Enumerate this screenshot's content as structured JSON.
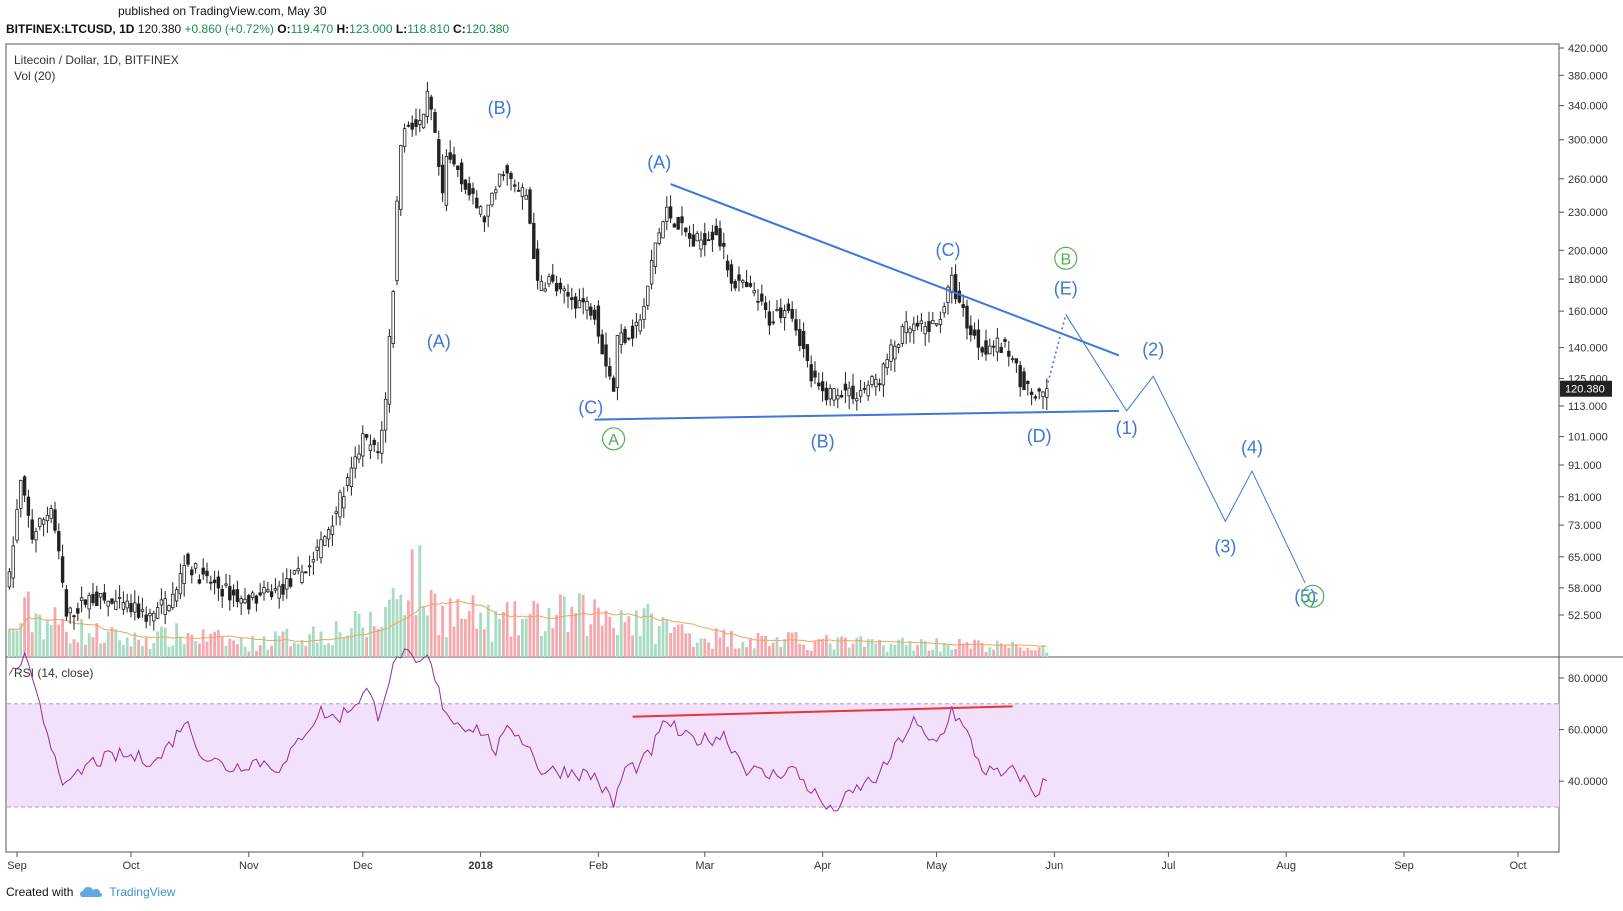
{
  "header": {
    "published": "published on TradingView.com, May 30",
    "symbol": "BITFINEX:LTCUSD, 1D",
    "price": "120.380",
    "change": "+0.860 (+0.72%)",
    "o_label": "O:",
    "o": "119.470",
    "h_label": "H:",
    "h": "123.000",
    "l_label": "L:",
    "l": "118.810",
    "c_label": "C:",
    "c": "120.380"
  },
  "footer": {
    "created_with": "Created with",
    "brand": "TradingView"
  },
  "chart_data": {
    "type": "candlestick",
    "title": "Litecoin / Dollar, 1D, BITFINEX",
    "volume_label": "Vol (20)",
    "rsi_label": "RSI (14, close)",
    "last_price_tag": "120.380",
    "price_axis": {
      "scale": "log",
      "ylim": [
        48,
        422
      ],
      "ticks": [
        "420.000",
        "380.000",
        "340.000",
        "300.000",
        "260.000",
        "230.000",
        "200.000",
        "180.000",
        "160.000",
        "140.000",
        "125.000",
        "113.000",
        "101.000",
        "91.000",
        "81.000",
        "73.000",
        "65.000",
        "58.000",
        "52.500"
      ]
    },
    "rsi_axis": {
      "ylim": [
        25,
        97
      ],
      "ticks": [
        "80.0000",
        "60.0000",
        "40.0000"
      ],
      "band": [
        30,
        70
      ]
    },
    "time_axis": {
      "labels": [
        "Sep",
        "Oct",
        "Nov",
        "Dec",
        "2018",
        "Feb",
        "Mar",
        "Apr",
        "May",
        "Jun",
        "Jul",
        "Aug",
        "Sep",
        "Oct"
      ],
      "dates": [
        "2017-09-01",
        "2017-10-01",
        "2017-11-01",
        "2017-12-01",
        "2018-01-01",
        "2018-02-01",
        "2018-03-01",
        "2018-04-01",
        "2018-05-01",
        "2018-06-01",
        "2018-07-01",
        "2018-08-01",
        "2018-09-01",
        "2018-10-01"
      ]
    },
    "price_anchors": [
      [
        "2017-08-30",
        60
      ],
      [
        "2017-09-02",
        85
      ],
      [
        "2017-09-05",
        70
      ],
      [
        "2017-09-10",
        78
      ],
      [
        "2017-09-14",
        52
      ],
      [
        "2017-09-20",
        56
      ],
      [
        "2017-09-30",
        54
      ],
      [
        "2017-10-06",
        52
      ],
      [
        "2017-10-13",
        57
      ],
      [
        "2017-10-15",
        64
      ],
      [
        "2017-10-20",
        60
      ],
      [
        "2017-10-31",
        55
      ],
      [
        "2017-11-10",
        58
      ],
      [
        "2017-11-17",
        63
      ],
      [
        "2017-11-21",
        70
      ],
      [
        "2017-11-25",
        80
      ],
      [
        "2017-11-28",
        88
      ],
      [
        "2017-12-01",
        100
      ],
      [
        "2017-12-05",
        95
      ],
      [
        "2017-12-07",
        115
      ],
      [
        "2017-12-09",
        175
      ],
      [
        "2017-12-11",
        300
      ],
      [
        "2017-12-13",
        320
      ],
      [
        "2017-12-15",
        315
      ],
      [
        "2017-12-17",
        320
      ],
      [
        "2017-12-18",
        350
      ],
      [
        "2017-12-19",
        330
      ],
      [
        "2017-12-22",
        240
      ],
      [
        "2017-12-23",
        280
      ],
      [
        "2017-12-26",
        270
      ],
      [
        "2017-12-29",
        245
      ],
      [
        "2018-01-02",
        225
      ],
      [
        "2018-01-04",
        240
      ],
      [
        "2018-01-07",
        270
      ],
      [
        "2018-01-10",
        250
      ],
      [
        "2018-01-13",
        245
      ],
      [
        "2018-01-16",
        175
      ],
      [
        "2018-01-19",
        180
      ],
      [
        "2018-01-22",
        170
      ],
      [
        "2018-01-28",
        165
      ],
      [
        "2018-01-31",
        160
      ],
      [
        "2018-02-02",
        140
      ],
      [
        "2018-02-05",
        120
      ],
      [
        "2018-02-06",
        145
      ],
      [
        "2018-02-10",
        148
      ],
      [
        "2018-02-13",
        160
      ],
      [
        "2018-02-16",
        205
      ],
      [
        "2018-02-19",
        230
      ],
      [
        "2018-02-22",
        220
      ],
      [
        "2018-02-26",
        205
      ],
      [
        "2018-03-01",
        210
      ],
      [
        "2018-03-04",
        215
      ],
      [
        "2018-03-08",
        180
      ],
      [
        "2018-03-14",
        170
      ],
      [
        "2018-03-18",
        155
      ],
      [
        "2018-03-23",
        165
      ],
      [
        "2018-03-26",
        145
      ],
      [
        "2018-03-29",
        125
      ],
      [
        "2018-04-01",
        118
      ],
      [
        "2018-04-06",
        120
      ],
      [
        "2018-04-10",
        118
      ],
      [
        "2018-04-13",
        122
      ],
      [
        "2018-04-16",
        125
      ],
      [
        "2018-04-19",
        138
      ],
      [
        "2018-04-23",
        150
      ],
      [
        "2018-04-27",
        150
      ],
      [
        "2018-05-01",
        152
      ],
      [
        "2018-05-05",
        178
      ],
      [
        "2018-05-07",
        165
      ],
      [
        "2018-05-10",
        148
      ],
      [
        "2018-05-13",
        140
      ],
      [
        "2018-05-16",
        142
      ],
      [
        "2018-05-20",
        138
      ],
      [
        "2018-05-23",
        125
      ],
      [
        "2018-05-26",
        118
      ],
      [
        "2018-05-28",
        116
      ],
      [
        "2018-05-30",
        120.38
      ]
    ],
    "volume_anchors": [
      [
        "2017-08-30",
        20
      ],
      [
        "2017-09-04",
        40
      ],
      [
        "2017-09-15",
        25
      ],
      [
        "2017-10-01",
        15
      ],
      [
        "2017-10-15",
        20
      ],
      [
        "2017-11-01",
        12
      ],
      [
        "2017-11-20",
        22
      ],
      [
        "2017-12-05",
        30
      ],
      [
        "2017-12-10",
        60
      ],
      [
        "2017-12-13",
        80
      ],
      [
        "2017-12-20",
        45
      ],
      [
        "2018-01-05",
        30
      ],
      [
        "2018-01-17",
        35
      ],
      [
        "2018-02-06",
        40
      ],
      [
        "2018-02-15",
        30
      ],
      [
        "2018-03-01",
        18
      ],
      [
        "2018-03-20",
        15
      ],
      [
        "2018-04-10",
        12
      ],
      [
        "2018-05-01",
        12
      ],
      [
        "2018-05-30",
        8
      ]
    ],
    "rsi_anchors": [
      [
        "2017-08-30",
        80
      ],
      [
        "2017-09-03",
        88
      ],
      [
        "2017-09-07",
        68
      ],
      [
        "2017-09-14",
        37
      ],
      [
        "2017-09-20",
        47
      ],
      [
        "2017-09-28",
        50
      ],
      [
        "2017-10-08",
        48
      ],
      [
        "2017-10-13",
        58
      ],
      [
        "2017-10-15",
        64
      ],
      [
        "2017-10-20",
        50
      ],
      [
        "2017-10-27",
        45
      ],
      [
        "2017-11-03",
        48
      ],
      [
        "2017-11-10",
        45
      ],
      [
        "2017-11-15",
        58
      ],
      [
        "2017-11-20",
        67
      ],
      [
        "2017-11-24",
        64
      ],
      [
        "2017-11-28",
        69
      ],
      [
        "2017-12-02",
        75
      ],
      [
        "2017-12-05",
        66
      ],
      [
        "2017-12-08",
        80
      ],
      [
        "2017-12-11",
        90
      ],
      [
        "2017-12-13",
        88
      ],
      [
        "2017-12-15",
        84
      ],
      [
        "2017-12-18",
        88
      ],
      [
        "2017-12-22",
        70
      ],
      [
        "2017-12-25",
        63
      ],
      [
        "2018-01-01",
        60
      ],
      [
        "2018-01-05",
        52
      ],
      [
        "2018-01-09",
        61
      ],
      [
        "2018-01-13",
        55
      ],
      [
        "2018-01-17",
        44
      ],
      [
        "2018-01-24",
        44
      ],
      [
        "2018-01-31",
        42
      ],
      [
        "2018-02-05",
        31
      ],
      [
        "2018-02-08",
        45
      ],
      [
        "2018-02-12",
        46
      ],
      [
        "2018-02-15",
        52
      ],
      [
        "2018-02-19",
        64
      ],
      [
        "2018-02-23",
        57
      ],
      [
        "2018-03-01",
        56
      ],
      [
        "2018-03-06",
        58
      ],
      [
        "2018-03-12",
        45
      ],
      [
        "2018-03-18",
        42
      ],
      [
        "2018-03-24",
        45
      ],
      [
        "2018-03-30",
        35
      ],
      [
        "2018-04-03",
        28
      ],
      [
        "2018-04-07",
        33
      ],
      [
        "2018-04-11",
        38
      ],
      [
        "2018-04-16",
        42
      ],
      [
        "2018-04-21",
        55
      ],
      [
        "2018-04-25",
        63
      ],
      [
        "2018-04-29",
        55
      ],
      [
        "2018-05-02",
        57
      ],
      [
        "2018-05-05",
        68
      ],
      [
        "2018-05-09",
        58
      ],
      [
        "2018-05-13",
        45
      ],
      [
        "2018-05-18",
        42
      ],
      [
        "2018-05-22",
        44
      ],
      [
        "2018-05-27",
        35
      ],
      [
        "2018-05-30",
        41
      ]
    ],
    "annotations": {
      "trendlines": [
        {
          "color": "#3b78d8",
          "from": [
            "2018-02-20",
            255
          ],
          "to": [
            "2018-06-18",
            136
          ]
        },
        {
          "color": "#3b78d8",
          "from": [
            "2018-01-31",
            107.5
          ],
          "to": [
            "2018-06-18",
            111
          ]
        },
        {
          "color": "#e8323c",
          "rsi": true,
          "from": [
            "2018-02-10",
            65
          ],
          "to": [
            "2018-05-21",
            69
          ]
        }
      ],
      "projection": {
        "color": "#3b78d8",
        "dotted": [
          [
            "2018-05-30",
            121
          ],
          [
            "2018-06-04",
            158
          ]
        ],
        "solid": [
          [
            "2018-06-04",
            158
          ],
          [
            "2018-06-20",
            111
          ],
          [
            "2018-06-27",
            126
          ],
          [
            "2018-07-16",
            74
          ],
          [
            "2018-07-23",
            89
          ],
          [
            "2018-08-06",
            59
          ]
        ]
      },
      "wave_labels": [
        {
          "text": "(A)",
          "date": "2017-12-21",
          "price": 140,
          "color": "#3b78d8"
        },
        {
          "text": "(B)",
          "date": "2018-01-06",
          "price": 330,
          "color": "#3b78d8"
        },
        {
          "text": "(C)",
          "date": "2018-01-30",
          "price": 110,
          "color": "#3b78d8"
        },
        {
          "text": "(A)",
          "date": "2018-02-17",
          "price": 270,
          "color": "#3b78d8"
        },
        {
          "text": "(B)",
          "date": "2018-04-01",
          "price": 97,
          "color": "#3b78d8"
        },
        {
          "text": "(C)",
          "date": "2018-05-04",
          "price": 196,
          "color": "#3b78d8"
        },
        {
          "text": "(D)",
          "date": "2018-05-28",
          "price": 99,
          "color": "#3b78d8"
        },
        {
          "text": "(E)",
          "date": "2018-06-04",
          "price": 170,
          "color": "#3b78d8"
        },
        {
          "text": "(1)",
          "date": "2018-06-20",
          "price": 102,
          "color": "#3b78d8"
        },
        {
          "text": "(2)",
          "date": "2018-06-27",
          "price": 136,
          "color": "#3b78d8"
        },
        {
          "text": "(3)",
          "date": "2018-07-16",
          "price": 66,
          "color": "#3b78d8"
        },
        {
          "text": "(4)",
          "date": "2018-07-23",
          "price": 95,
          "color": "#3b78d8"
        },
        {
          "text": "(5)",
          "date": "2018-08-06",
          "price": 55,
          "color": "#3b78d8"
        }
      ],
      "circled_labels": [
        {
          "text": "A",
          "date": "2018-02-05",
          "price": 98,
          "color": "#4caf50"
        },
        {
          "text": "B",
          "date": "2018-06-04",
          "price": 190,
          "color": "#4caf50"
        },
        {
          "text": "C",
          "date": "2018-08-08",
          "price": 55,
          "color": "#4caf50"
        }
      ]
    },
    "colors": {
      "candle": "#222222",
      "vol_up": "#a8dcc2",
      "vol_down": "#f5a9ae",
      "vol_ma": "#f0a35e",
      "rsi_line": "#8a2fa6",
      "rsi_band": "#f3e1fb",
      "price_tag": "#222222"
    }
  }
}
